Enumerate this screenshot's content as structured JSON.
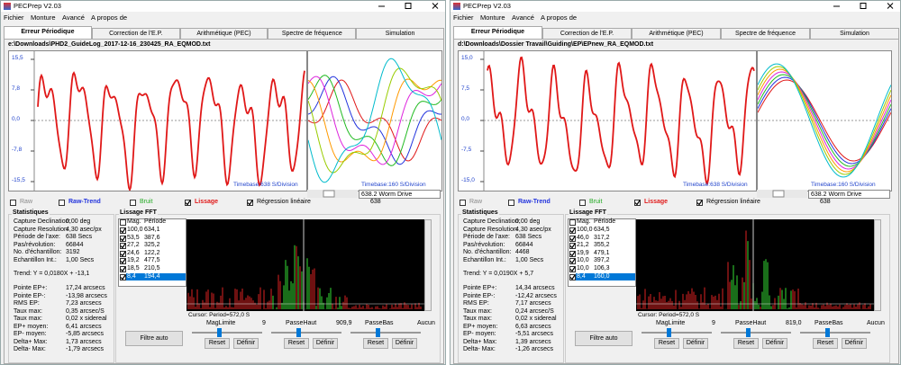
{
  "windows": [
    {
      "title": "PECPrep V2.03",
      "menu": [
        "Fichier",
        "Monture",
        "Avancé",
        "A propos de"
      ],
      "tabs": [
        "Erreur Périodique",
        "Correction de l'E.P.",
        "Arithmétique (PEC)",
        "Spectre de fréquence",
        "Simulation"
      ],
      "file": "e:\\Downloads\\PHD2_GuideLog_2017-12-16_230425_RA_EQMOD.txt",
      "yticks": [
        "15,5",
        "7,8",
        "0,0",
        "-7,8",
        "-15,5"
      ],
      "main_timebase": "Timebase:638 S/Division",
      "side_timebase": "Timebase:160 S/Division",
      "worm": "638.2 Worm Drive",
      "worm_value": "638",
      "checkboxes": [
        "Raw",
        "Raw-Trend",
        "Bruit",
        "Lissage",
        "Régression linéaire"
      ],
      "stats": {
        "title": "Statistiques",
        "top": [
          [
            "Capture Declination:",
            "0,00 deg"
          ],
          [
            "Capture Resolution:",
            "4,30 asec/px"
          ],
          [
            "Période de l'axe:",
            "638 Secs"
          ],
          [
            "Pas/révolution:",
            "66844"
          ],
          [
            "No. d'échantillon:",
            "3192"
          ],
          [
            "Echantillon Int.:",
            "1,00 Secs"
          ]
        ],
        "trend": "Trend: Y = 0,0180X + -13,1",
        "bottom": [
          [
            "Pointe EP+:",
            "17,24 arcsecs"
          ],
          [
            "Pointe EP-:",
            "-13,98 arcsecs"
          ],
          [
            "RMS EP:",
            "7,23 arcsecs"
          ],
          [
            "Taux max:",
            "0,35 arcsec/S"
          ],
          [
            "Taux max:",
            "0,02 x sidereal"
          ],
          [
            "EP+ moyen:",
            "6,41 arcsecs"
          ],
          [
            "EP- moyen:",
            "-5,85 arcsecs"
          ],
          [
            "Delta+ Max:",
            "1,73 arcsecs"
          ],
          [
            "Delta- Max:",
            "-1,79 arcsecs"
          ]
        ]
      },
      "fft": {
        "title": "Lissage FFT",
        "headers": [
          "Mag.",
          "Période"
        ],
        "rows": [
          [
            "100,0",
            "634,1"
          ],
          [
            "53,5",
            "387,6"
          ],
          [
            "27,2",
            "325,2"
          ],
          [
            "24,6",
            "122,2"
          ],
          [
            "19,2",
            "477,5"
          ],
          [
            "18,5",
            "210,5"
          ],
          [
            "8,4",
            "194,4"
          ]
        ],
        "cursor": "Cursor: Period=572,0 S"
      },
      "controls": {
        "maglimite": "MagLimite",
        "maglimite_value": "9",
        "passehaut": "PasseHaut",
        "passehaut_value": "909,9",
        "passebas": "PasseBas",
        "passebas_value": "Aucun",
        "reset": "Reset",
        "definir": "Définir",
        "filtre": "Filtre auto"
      }
    },
    {
      "title": "PECPrep V2.03",
      "menu": [
        "Fichier",
        "Monture",
        "Avancé",
        "A propos de"
      ],
      "tabs": [
        "Erreur Périodique",
        "Correction de l'E.P.",
        "Arithmétique (PEC)",
        "Spectre de fréquence",
        "Simulation"
      ],
      "file": "d:\\Downloads\\Dossier Travail\\Guiding\\EP\\EPnew_RA_EQMOD.txt",
      "yticks": [
        "15,0",
        "7,5",
        "0,0",
        "-7,5",
        "-15,0"
      ],
      "main_timebase": "Timebase:638 S/Division",
      "side_timebase": "Timebase:160 S/Division",
      "worm": "638.2 Worm Drive",
      "worm_value": "638",
      "checkboxes": [
        "Raw",
        "Raw-Trend",
        "Bruit",
        "Lissage",
        "Régression linéaire"
      ],
      "stats": {
        "title": "Statistiques",
        "top": [
          [
            "Capture Declination:",
            "0,00 deg"
          ],
          [
            "Capture Resolution:",
            "4,30 asec/px"
          ],
          [
            "Période de l'axe:",
            "638 Secs"
          ],
          [
            "Pas/révolution:",
            "66844"
          ],
          [
            "No. d'échantillon:",
            "4468"
          ],
          [
            "Echantillon Int.:",
            "1,00 Secs"
          ]
        ],
        "trend": "Trend: Y = 0,0190X + 5,7",
        "bottom": [
          [
            "Pointe EP+:",
            "14,34 arcsecs"
          ],
          [
            "Pointe EP-:",
            "-12,42 arcsecs"
          ],
          [
            "RMS EP:",
            "7,17 arcsecs"
          ],
          [
            "Taux max:",
            "0,24 arcsec/S"
          ],
          [
            "Taux max:",
            "0,02 x sidereal"
          ],
          [
            "EP+ moyen:",
            "6,63 arcsecs"
          ],
          [
            "EP- moyen:",
            "-5,51 arcsecs"
          ],
          [
            "Delta+ Max:",
            "1,39 arcsecs"
          ],
          [
            "Delta- Max:",
            "-1,26 arcsecs"
          ]
        ]
      },
      "fft": {
        "title": "Lissage FFT",
        "headers": [
          "Mag.",
          "Période"
        ],
        "rows": [
          [
            "100,0",
            "634,5"
          ],
          [
            "46,0",
            "317,2"
          ],
          [
            "21,2",
            "355,2"
          ],
          [
            "19,9",
            "479,1"
          ],
          [
            "10,0",
            "397,2"
          ],
          [
            "10,0",
            "106,3"
          ],
          [
            "8,4",
            "160,0"
          ]
        ],
        "cursor": "Cursor: Period=572,0 S"
      },
      "controls": {
        "maglimite": "MagLimite",
        "maglimite_value": "9",
        "passehaut": "PasseHaut",
        "passehaut_value": "819,0",
        "passebas": "PasseBas",
        "passebas_value": "Aucun",
        "reset": "Reset",
        "definir": "Définir",
        "filtre": "Filtre auto"
      }
    }
  ]
}
